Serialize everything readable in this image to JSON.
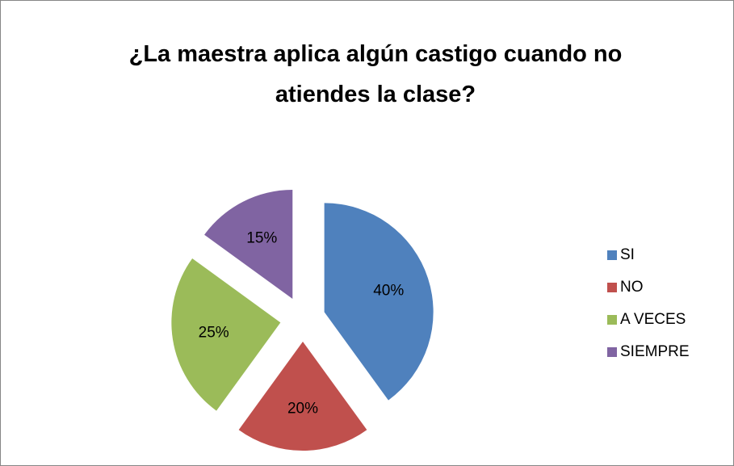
{
  "chart_data": {
    "type": "pie",
    "title": "¿La maestra aplica algún castigo cuando no atiendes la clase?",
    "categories": [
      "SI",
      "NO",
      "A VECES",
      "SIEMPRE"
    ],
    "values": [
      40,
      20,
      25,
      15
    ],
    "value_labels": [
      "40%",
      "20%",
      "25%",
      "15%"
    ],
    "colors": [
      "#4f81bd",
      "#c0504d",
      "#9bbb59",
      "#8064a2"
    ],
    "exploded": true,
    "legend": "right"
  }
}
